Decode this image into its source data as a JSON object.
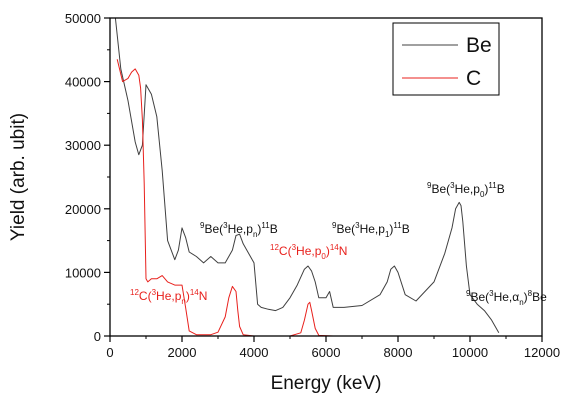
{
  "chart_data": {
    "type": "line",
    "xlabel": "Energy (keV)",
    "ylabel": "Yield (arb. ubit)",
    "xlim": [
      0,
      12000
    ],
    "ylim": [
      0,
      50000
    ],
    "x_ticks": [
      "0",
      "2000",
      "4000",
      "6000",
      "8000",
      "10000",
      "12000"
    ],
    "y_ticks": [
      "0",
      "10000",
      "20000",
      "30000",
      "40000",
      "50000"
    ],
    "legend_position": "top-right",
    "grid": false,
    "colors": {
      "Be": "#404040",
      "C": "#e8201c"
    },
    "series": [
      {
        "name": "Be",
        "x": [
          150,
          300,
          500,
          700,
          800,
          900,
          1000,
          1150,
          1300,
          1450,
          1600,
          1800,
          1900,
          2000,
          2100,
          2200,
          2400,
          2600,
          2800,
          3000,
          3200,
          3400,
          3500,
          3600,
          3700,
          3800,
          3900,
          4000,
          4100,
          4200,
          4400,
          4600,
          4800,
          5000,
          5200,
          5400,
          5500,
          5600,
          5700,
          5800,
          6000,
          6100,
          6200,
          6500,
          7000,
          7500,
          7700,
          7800,
          7900,
          8000,
          8200,
          8500,
          9000,
          9300,
          9500,
          9600,
          9700,
          9750,
          9800,
          9900,
          10000,
          10200,
          10400,
          10600,
          10800
        ],
        "y": [
          50000,
          42000,
          37000,
          30500,
          28500,
          30000,
          39500,
          38000,
          34500,
          26000,
          15000,
          12000,
          13500,
          17000,
          15500,
          13200,
          12500,
          11500,
          12500,
          11500,
          11500,
          13500,
          15800,
          16000,
          14500,
          13500,
          12500,
          11500,
          5000,
          4500,
          4200,
          4000,
          4500,
          6000,
          8000,
          10500,
          11000,
          10200,
          8500,
          6000,
          6000,
          7000,
          4500,
          4500,
          4800,
          6500,
          8500,
          10500,
          11000,
          10000,
          6500,
          5500,
          8500,
          13000,
          17000,
          20000,
          21000,
          20500,
          18000,
          11000,
          6500,
          5000,
          4000,
          2500,
          500
        ]
      },
      {
        "name": "C",
        "x": [
          200,
          350,
          500,
          600,
          700,
          800,
          850,
          900,
          950,
          1000,
          1050,
          1150,
          1300,
          1450,
          1600,
          1800,
          2000,
          2100,
          2200,
          2400,
          2600,
          2800,
          3000,
          3200,
          3300,
          3400,
          3500,
          3550,
          3600,
          3700,
          4000,
          5000,
          5300,
          5400,
          5500,
          5550,
          5600,
          5700,
          5800,
          6200,
          12000
        ],
        "y": [
          43500,
          40000,
          40500,
          41500,
          42000,
          41000,
          39000,
          34000,
          24000,
          9000,
          8500,
          9000,
          9000,
          9500,
          8500,
          8000,
          8000,
          4500,
          800,
          200,
          200,
          200,
          600,
          3000,
          6000,
          7800,
          7000,
          4000,
          1500,
          200,
          0,
          0,
          500,
          2500,
          5000,
          5300,
          4000,
          1200,
          100,
          0,
          0
        ]
      }
    ],
    "annotations": [
      {
        "id": "be-p0",
        "target": "9",
        "mid": "Be(",
        "isotope": "3",
        "reaction": "He,p",
        "particle": "0",
        "close": ")",
        "product_mass": "11",
        "product": "B",
        "series": "Be"
      },
      {
        "id": "be-pn",
        "target": "9",
        "mid": "Be(",
        "isotope": "3",
        "reaction": "He,p",
        "particle": "n",
        "close": ")",
        "product_mass": "11",
        "product": "B",
        "series": "Be"
      },
      {
        "id": "be-p1",
        "target": "9",
        "mid": "Be(",
        "isotope": "3",
        "reaction": "He,p",
        "particle": "1",
        "close": ")",
        "product_mass": "11",
        "product": "B",
        "series": "Be"
      },
      {
        "id": "be-an",
        "target": "9",
        "mid": "Be(",
        "isotope": "3",
        "reaction": "He,α",
        "particle": "n",
        "close": ")",
        "product_mass": "8",
        "product": "Be",
        "series": "Be"
      },
      {
        "id": "c-p0",
        "target": "12",
        "mid": "C(",
        "isotope": "3",
        "reaction": "He,p",
        "particle": "0",
        "close": ")",
        "product_mass": "14",
        "product": "N",
        "series": "C"
      },
      {
        "id": "c-pn",
        "target": "12",
        "mid": "C(",
        "isotope": "3",
        "reaction": "He,p",
        "particle": "n",
        "close": ")",
        "product_mass": "14",
        "product": "N",
        "series": "C"
      }
    ]
  }
}
